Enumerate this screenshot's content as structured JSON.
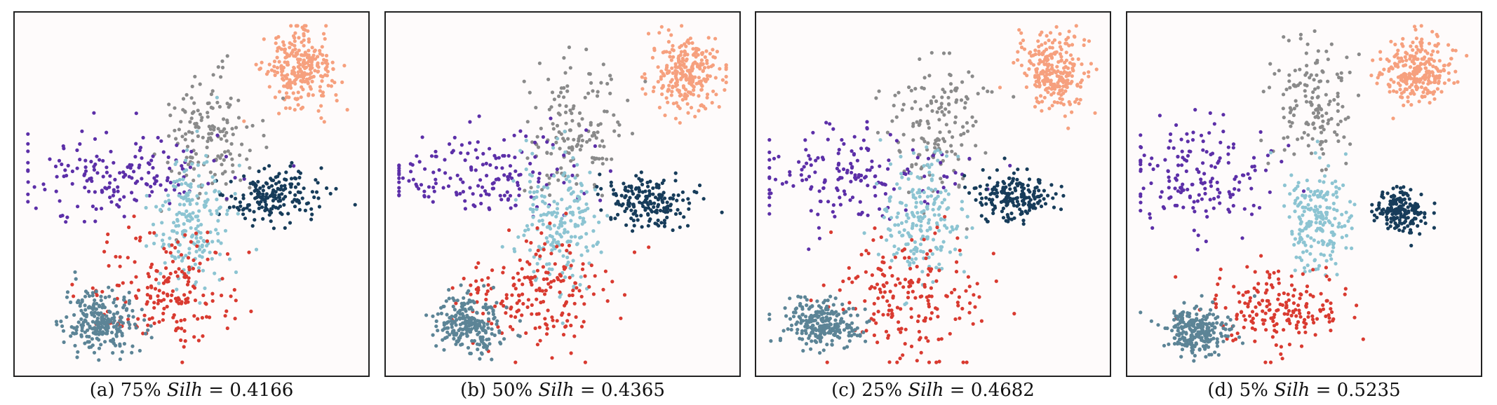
{
  "chart_data": [
    {
      "type": "scatter",
      "caption_label": "(a)",
      "caption_percent": "75%",
      "metric_name": "Silh",
      "metric_value": "= 0.4166",
      "silhouette": 0.4166,
      "series": [
        {
          "color": "#f6a07e",
          "center": [
            0.82,
            0.86
          ],
          "spread": [
            0.05,
            0.055
          ],
          "count": 260
        },
        {
          "color": "#8a8a8a",
          "center": [
            0.56,
            0.68
          ],
          "spread": [
            0.07,
            0.09
          ],
          "count": 150
        },
        {
          "color": "#5c2fa8",
          "center": [
            0.27,
            0.56
          ],
          "spread": [
            0.16,
            0.06
          ],
          "count": 170
        },
        {
          "color": "#173c5a",
          "center": [
            0.74,
            0.49
          ],
          "spread": [
            0.07,
            0.04
          ],
          "count": 180
        },
        {
          "color": "#8cc4d2",
          "center": [
            0.5,
            0.42
          ],
          "spread": [
            0.06,
            0.09
          ],
          "count": 200
        },
        {
          "color": "#d93a30",
          "center": [
            0.42,
            0.22
          ],
          "spread": [
            0.11,
            0.09
          ],
          "count": 190
        },
        {
          "color": "#5c8496",
          "center": [
            0.23,
            0.13
          ],
          "spread": [
            0.05,
            0.045
          ],
          "count": 240
        }
      ]
    },
    {
      "type": "scatter",
      "caption_label": "(b)",
      "caption_percent": "50%",
      "metric_name": "Silh",
      "metric_value": "= 0.4365",
      "silhouette": 0.4365,
      "series": [
        {
          "color": "#f6a07e",
          "center": [
            0.87,
            0.85
          ],
          "spread": [
            0.05,
            0.055
          ],
          "count": 260
        },
        {
          "color": "#8a8a8a",
          "center": [
            0.54,
            0.7
          ],
          "spread": [
            0.07,
            0.09
          ],
          "count": 150
        },
        {
          "color": "#5c2fa8",
          "center": [
            0.26,
            0.56
          ],
          "spread": [
            0.16,
            0.06
          ],
          "count": 170
        },
        {
          "color": "#173c5a",
          "center": [
            0.75,
            0.48
          ],
          "spread": [
            0.07,
            0.04
          ],
          "count": 180
        },
        {
          "color": "#8cc4d2",
          "center": [
            0.49,
            0.42
          ],
          "spread": [
            0.06,
            0.09
          ],
          "count": 200
        },
        {
          "color": "#d93a30",
          "center": [
            0.43,
            0.21
          ],
          "spread": [
            0.11,
            0.09
          ],
          "count": 190
        },
        {
          "color": "#5c8496",
          "center": [
            0.22,
            0.12
          ],
          "spread": [
            0.05,
            0.045
          ],
          "count": 240
        }
      ]
    },
    {
      "type": "scatter",
      "caption_label": "(c)",
      "caption_percent": "25%",
      "metric_name": "Silh",
      "metric_value": "= 0.4682",
      "silhouette": 0.4682,
      "series": [
        {
          "color": "#f6a07e",
          "center": [
            0.86,
            0.86
          ],
          "spread": [
            0.05,
            0.055
          ],
          "count": 260
        },
        {
          "color": "#8a8a8a",
          "center": [
            0.51,
            0.7
          ],
          "spread": [
            0.07,
            0.09
          ],
          "count": 150
        },
        {
          "color": "#5c2fa8",
          "center": [
            0.24,
            0.55
          ],
          "spread": [
            0.15,
            0.06
          ],
          "count": 170
        },
        {
          "color": "#173c5a",
          "center": [
            0.75,
            0.49
          ],
          "spread": [
            0.06,
            0.04
          ],
          "count": 180
        },
        {
          "color": "#8cc4d2",
          "center": [
            0.47,
            0.42
          ],
          "spread": [
            0.06,
            0.09
          ],
          "count": 200
        },
        {
          "color": "#d93a30",
          "center": [
            0.42,
            0.21
          ],
          "spread": [
            0.11,
            0.09
          ],
          "count": 190
        },
        {
          "color": "#5c8496",
          "center": [
            0.17,
            0.12
          ],
          "spread": [
            0.06,
            0.035
          ],
          "count": 240
        }
      ]
    },
    {
      "type": "scatter",
      "caption_label": "(d)",
      "caption_percent": "5%",
      "metric_name": "Silh",
      "metric_value": "= 0.5235",
      "silhouette": 0.5235,
      "series": [
        {
          "color": "#f6a07e",
          "center": [
            0.84,
            0.86
          ],
          "spread": [
            0.05,
            0.05
          ],
          "count": 260
        },
        {
          "color": "#8a8a8a",
          "center": [
            0.52,
            0.76
          ],
          "spread": [
            0.06,
            0.09
          ],
          "count": 150
        },
        {
          "color": "#5c2fa8",
          "center": [
            0.18,
            0.55
          ],
          "spread": [
            0.1,
            0.08
          ],
          "count": 170
        },
        {
          "color": "#173c5a",
          "center": [
            0.79,
            0.45
          ],
          "spread": [
            0.04,
            0.03
          ],
          "count": 180
        },
        {
          "color": "#8cc4d2",
          "center": [
            0.54,
            0.42
          ],
          "spread": [
            0.05,
            0.08
          ],
          "count": 200
        },
        {
          "color": "#d93a30",
          "center": [
            0.43,
            0.16
          ],
          "spread": [
            0.1,
            0.06
          ],
          "count": 190
        },
        {
          "color": "#5c8496",
          "center": [
            0.18,
            0.1
          ],
          "spread": [
            0.05,
            0.035
          ],
          "count": 240
        }
      ]
    }
  ]
}
